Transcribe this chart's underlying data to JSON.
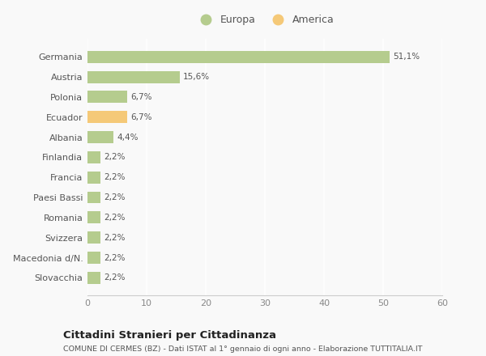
{
  "categories": [
    "Germania",
    "Austria",
    "Polonia",
    "Ecuador",
    "Albania",
    "Finlandia",
    "Francia",
    "Paesi Bassi",
    "Romania",
    "Svizzera",
    "Macedonia d/N.",
    "Slovacchia"
  ],
  "values": [
    51.1,
    15.6,
    6.7,
    6.7,
    4.4,
    2.2,
    2.2,
    2.2,
    2.2,
    2.2,
    2.2,
    2.2
  ],
  "labels": [
    "51,1%",
    "15,6%",
    "6,7%",
    "6,7%",
    "4,4%",
    "2,2%",
    "2,2%",
    "2,2%",
    "2,2%",
    "2,2%",
    "2,2%",
    "2,2%"
  ],
  "colors": [
    "#b5cc8e",
    "#b5cc8e",
    "#b5cc8e",
    "#f5c978",
    "#b5cc8e",
    "#b5cc8e",
    "#b5cc8e",
    "#b5cc8e",
    "#b5cc8e",
    "#b5cc8e",
    "#b5cc8e",
    "#b5cc8e"
  ],
  "legend_labels": [
    "Europa",
    "America"
  ],
  "legend_colors": [
    "#b5cc8e",
    "#f5c978"
  ],
  "xlim": [
    0,
    60
  ],
  "xticks": [
    0,
    10,
    20,
    30,
    40,
    50,
    60
  ],
  "title1": "Cittadini Stranieri per Cittadinanza",
  "title2": "COMUNE DI CERMES (BZ) - Dati ISTAT al 1° gennaio di ogni anno - Elaborazione TUTTITALIA.IT",
  "background_color": "#f9f9f9",
  "grid_color": "#e8e8e8",
  "bar_height": 0.6
}
